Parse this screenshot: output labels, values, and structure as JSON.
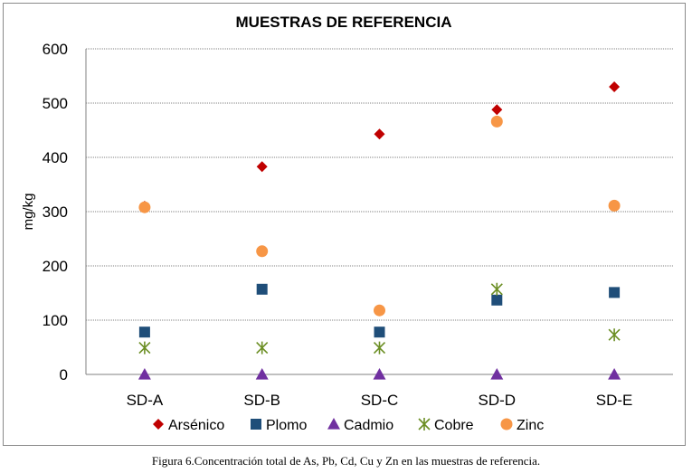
{
  "caption": "Figura 6.Concentración total de As, Pb, Cd, Cu y Zn en las muestras de referencia.",
  "chart_data": {
    "type": "scatter",
    "title": "MUESTRAS DE REFERENCIA",
    "xlabel": "",
    "ylabel": "mg/kg",
    "categories": [
      "SD-A",
      "SD-B",
      "SD-C",
      "SD-D",
      "SD-E"
    ],
    "ylim": [
      0,
      600
    ],
    "yticks": [
      0,
      100,
      200,
      300,
      400,
      500,
      600
    ],
    "grid": true,
    "legend_position": "bottom",
    "series": [
      {
        "name": "Arsénico",
        "marker": "diamond",
        "color": "#c00000",
        "values": [
          310,
          383,
          443,
          488,
          530
        ]
      },
      {
        "name": "Plomo",
        "marker": "square",
        "color": "#1f4e79",
        "values": [
          78,
          157,
          78,
          137,
          151
        ]
      },
      {
        "name": "Cadmio",
        "marker": "triangle",
        "color": "#7030a0",
        "values": [
          0,
          0,
          0,
          0,
          0
        ]
      },
      {
        "name": "Cobre",
        "marker": "asterisk",
        "color": "#6b8e23",
        "values": [
          49,
          49,
          49,
          157,
          73
        ]
      },
      {
        "name": "Zinc",
        "marker": "circle",
        "color": "#f79646",
        "values": [
          308,
          227,
          118,
          466,
          311
        ]
      }
    ]
  }
}
